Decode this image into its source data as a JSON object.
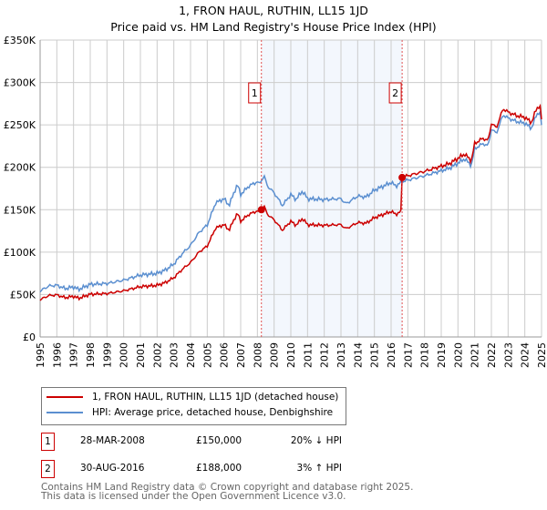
{
  "chart_data": {
    "type": "line",
    "title": "1, FRON HAUL, RUTHIN, LL15 1JD",
    "subtitle": "Price paid vs. HM Land Registry's House Price Index (HPI)",
    "xlim": [
      1995,
      2025
    ],
    "ylim": [
      0,
      350000
    ],
    "x_ticks": [
      "1995",
      "1996",
      "1997",
      "1998",
      "1999",
      "2000",
      "2001",
      "2002",
      "2003",
      "2004",
      "2005",
      "2006",
      "2007",
      "2008",
      "2009",
      "2010",
      "2011",
      "2012",
      "2013",
      "2014",
      "2015",
      "2016",
      "2017",
      "2018",
      "2019",
      "2020",
      "2021",
      "2022",
      "2023",
      "2024",
      "2025"
    ],
    "y_ticks": [
      {
        "v": 0,
        "l": "£0"
      },
      {
        "v": 50000,
        "l": "£50K"
      },
      {
        "v": 100000,
        "l": "£100K"
      },
      {
        "v": 150000,
        "l": "£150K"
      },
      {
        "v": 200000,
        "l": "£200K"
      },
      {
        "v": 250000,
        "l": "£250K"
      },
      {
        "v": 300000,
        "l": "£300K"
      },
      {
        "v": 350000,
        "l": "£350K"
      }
    ],
    "grid": true,
    "series": [
      {
        "name": "1, FRON HAUL, RUTHIN, LL15 1JD (detached house)",
        "color": "#cc0000"
      },
      {
        "name": "HPI: Average price, detached house, Denbighshire",
        "color": "#5b8fd0",
        "x": [
          1995,
          1995.5,
          1996,
          1996.5,
          1997,
          1997.3,
          1998,
          1999,
          2000,
          2000.5,
          2001,
          2002,
          2002.5,
          2003,
          2003.5,
          2004,
          2004.5,
          2005,
          2005.5,
          2006,
          2006.3,
          2006.8,
          2007,
          2007.5,
          2008,
          2008.1,
          2008.4,
          2008.6,
          2009,
          2009.5,
          2010,
          2010.3,
          2010.7,
          2011,
          2012,
          2013,
          2013.3,
          2014,
          2014.5,
          2015,
          2016,
          2016.3,
          2016.66,
          2017,
          2018,
          2019,
          2019.5,
          2020,
          2020.4,
          2020.8,
          2021,
          2021.5,
          2021.8,
          2022,
          2022.3,
          2022.7,
          2023,
          2023.5,
          2024,
          2024.4,
          2024.7,
          2024.9,
          2025
        ],
        "y": [
          54000,
          60000,
          61000,
          57000,
          59000,
          56000,
          62000,
          63000,
          67000,
          70000,
          73000,
          75000,
          79000,
          86000,
          98000,
          108000,
          123000,
          132000,
          158000,
          163000,
          155000,
          180000,
          168000,
          178000,
          183000,
          180000,
          190000,
          178000,
          170000,
          155000,
          168000,
          162000,
          172000,
          163000,
          162000,
          163000,
          157000,
          166000,
          165000,
          173000,
          182000,
          178000,
          183000,
          185000,
          190000,
          196000,
          199000,
          205000,
          210000,
          202000,
          222000,
          228000,
          225000,
          245000,
          240000,
          262000,
          258000,
          254000,
          252000,
          246000,
          262000,
          266000,
          250000
        ]
      }
    ],
    "sales": [
      {
        "id": "1",
        "x": 2008.24,
        "date": "28-MAR-2008",
        "price": 150000,
        "price_label": "£150,000",
        "hpi": "20% ↓ HPI"
      },
      {
        "id": "2",
        "x": 2016.66,
        "date": "30-AUG-2016",
        "price": 188000,
        "price_label": "£188,000",
        "hpi": "3% ↑ HPI"
      }
    ]
  },
  "footer": {
    "line1": "Contains HM Land Registry data © Crown copyright and database right 2025.",
    "line2": "This data is licensed under the Open Government Licence v3.0."
  }
}
